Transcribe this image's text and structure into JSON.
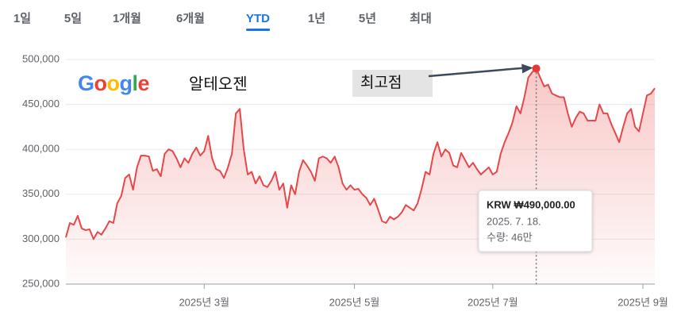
{
  "tabs": [
    "1일",
    "5일",
    "1개월",
    "6개월",
    "YTD",
    "1년",
    "5년",
    "최대"
  ],
  "selected_tab": 4,
  "chart_data": {
    "type": "line",
    "logo": "Google",
    "title": "알테오젠",
    "annotation": "최고점",
    "tooltip": {
      "price": "KRW ₩490,000.00",
      "date": "2025. 7. 18.",
      "volume": "수량: 46만"
    },
    "color": "#e8474a",
    "marker_color": "#e53935",
    "grid": true,
    "ylim": [
      250000,
      500000
    ],
    "yticks": [
      {
        "value": 250000,
        "label": "250,000"
      },
      {
        "value": 300000,
        "label": "300,000"
      },
      {
        "value": 350000,
        "label": "350,000"
      },
      {
        "value": 400000,
        "label": "400,000"
      },
      {
        "value": 450000,
        "label": "450,000"
      },
      {
        "value": 500000,
        "label": "500,000"
      }
    ],
    "categories": [
      null,
      null,
      null,
      null,
      null,
      null,
      null,
      null,
      null,
      null,
      null,
      null,
      null,
      null,
      null,
      null,
      null,
      null,
      null,
      null,
      null,
      null,
      null,
      null,
      null,
      null,
      null,
      null,
      null,
      null,
      null,
      null,
      null,
      null,
      null,
      "2025년 3월",
      null,
      null,
      null,
      null,
      null,
      null,
      null,
      null,
      null,
      null,
      null,
      null,
      null,
      null,
      null,
      null,
      null,
      null,
      null,
      null,
      null,
      null,
      null,
      null,
      null,
      null,
      null,
      null,
      null,
      null,
      null,
      null,
      null,
      null,
      null,
      null,
      null,
      "2025년 5월",
      null,
      null,
      null,
      null,
      null,
      null,
      null,
      null,
      null,
      null,
      null,
      null,
      null,
      null,
      null,
      null,
      null,
      null,
      null,
      null,
      null,
      null,
      null,
      null,
      null,
      null,
      null,
      null,
      null,
      null,
      null,
      null,
      null,
      null,
      "2025년 7월",
      null,
      null,
      null,
      null,
      null,
      null,
      null,
      null,
      null,
      null,
      null,
      null,
      null,
      null,
      null,
      null,
      null,
      null,
      null,
      null,
      null,
      null,
      null,
      null,
      null,
      null,
      null,
      null,
      null,
      null,
      null,
      null,
      null,
      null,
      null,
      null,
      null,
      "2025년 9월",
      null,
      null,
      null
    ],
    "values": [
      302000,
      318000,
      316000,
      326000,
      312000,
      310000,
      311000,
      300000,
      308000,
      305000,
      312000,
      320000,
      318000,
      340000,
      348000,
      368000,
      372000,
      355000,
      380000,
      393000,
      393000,
      392000,
      376000,
      378000,
      370000,
      395000,
      400000,
      398000,
      390000,
      380000,
      390000,
      385000,
      395000,
      402000,
      393000,
      398000,
      415000,
      390000,
      378000,
      376000,
      368000,
      380000,
      395000,
      440000,
      445000,
      400000,
      372000,
      375000,
      362000,
      370000,
      360000,
      358000,
      365000,
      375000,
      355000,
      362000,
      335000,
      360000,
      350000,
      375000,
      388000,
      382000,
      375000,
      365000,
      390000,
      392000,
      390000,
      385000,
      392000,
      380000,
      362000,
      355000,
      360000,
      355000,
      356000,
      350000,
      346000,
      338000,
      345000,
      333000,
      320000,
      318000,
      325000,
      322000,
      325000,
      330000,
      338000,
      335000,
      332000,
      340000,
      356000,
      375000,
      372000,
      395000,
      408000,
      392000,
      400000,
      396000,
      382000,
      380000,
      396000,
      388000,
      380000,
      385000,
      378000,
      372000,
      376000,
      380000,
      372000,
      375000,
      395000,
      408000,
      418000,
      430000,
      448000,
      440000,
      458000,
      480000,
      486000,
      490000,
      480000,
      470000,
      472000,
      462000,
      460000,
      458000,
      458000,
      440000,
      425000,
      435000,
      442000,
      440000,
      432000,
      432000,
      432000,
      450000,
      440000,
      440000,
      428000,
      418000,
      408000,
      425000,
      440000,
      445000,
      425000,
      420000,
      440000,
      460000,
      462000,
      468000
    ]
  }
}
